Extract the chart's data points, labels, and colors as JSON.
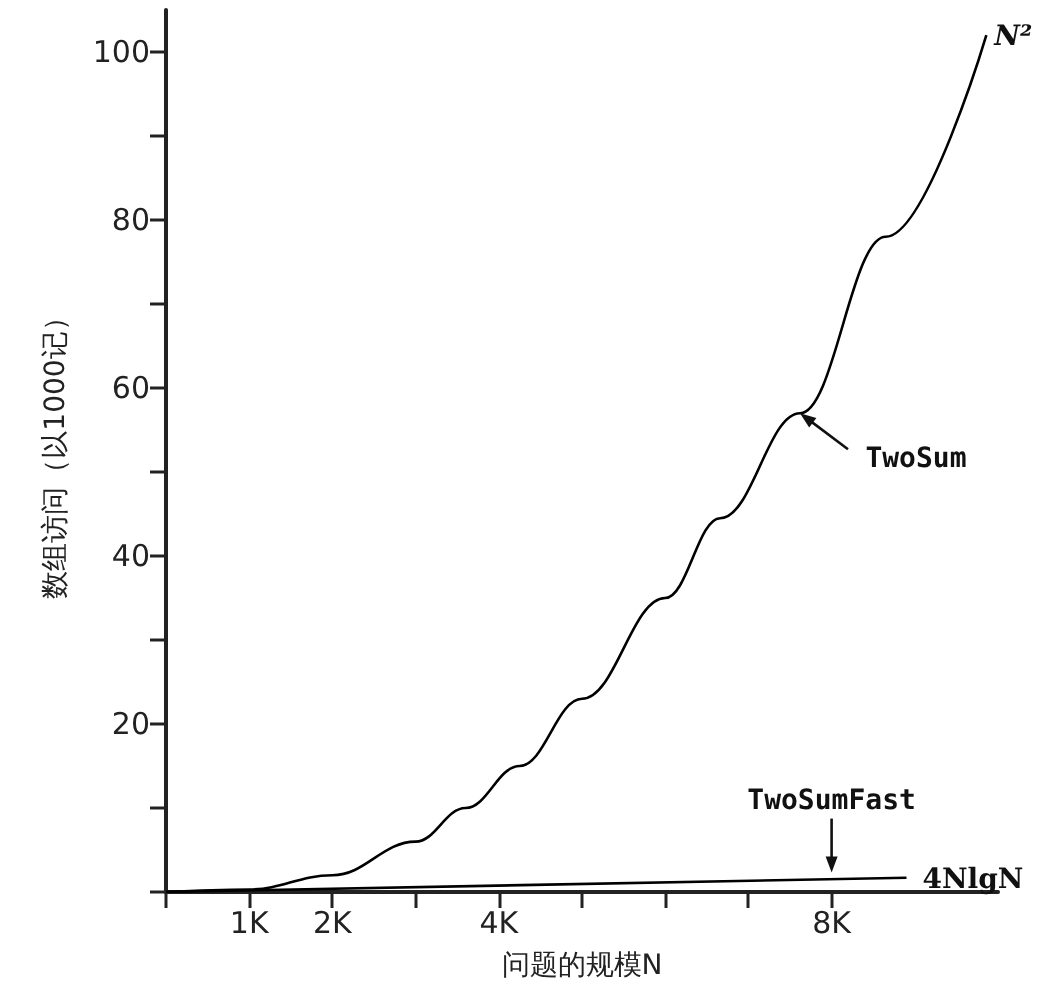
{
  "chart_data": {
    "type": "line",
    "xlabel": "问题的规模N",
    "ylabel": "数组访问（以1000记）",
    "series": [
      {
        "color": "#000000",
        "x": [
          0,
          1,
          2,
          3,
          3.6,
          4.25,
          5,
          6,
          6.66,
          7.62,
          8.65,
          9.86
        ],
        "values": [
          0,
          0.3,
          2,
          6,
          10,
          15,
          23,
          35,
          44.5,
          57,
          78,
          102
        ]
      },
      {
        "color": "#000000",
        "x": [
          0,
          8.9
        ],
        "values": [
          0,
          1.7
        ]
      }
    ],
    "xlim": [
      0,
      10
    ],
    "ylim": [
      0,
      105
    ],
    "xticks": [
      {
        "value": 0,
        "label": null
      },
      {
        "value": 1,
        "label": "1K"
      },
      {
        "value": 2,
        "label": "2K"
      },
      {
        "value": 3,
        "label": null
      },
      {
        "value": 4,
        "label": "4K"
      },
      {
        "value": 5,
        "label": null
      },
      {
        "value": 6,
        "label": null
      },
      {
        "value": 7,
        "label": null
      },
      {
        "value": 8,
        "label": "8K"
      }
    ],
    "yticks": [
      {
        "value": 0,
        "label": null
      },
      {
        "value": 10,
        "label": null
      },
      20,
      {
        "value": 30,
        "label": null
      },
      40,
      {
        "value": 50,
        "label": null
      },
      60,
      {
        "value": 70,
        "label": null
      },
      80,
      {
        "value": 90,
        "label": null
      },
      100
    ],
    "annotations": [
      {
        "text": "N²",
        "x": 9.86,
        "y": 102
      },
      {
        "text": "TwoSum",
        "x": 7.62,
        "y": 57
      },
      {
        "text": "TwoSumFast",
        "x": 8,
        "y": 1.6
      },
      {
        "text": "4NlgN",
        "x": 8.9,
        "y": 1.7
      }
    ],
    "grid": false,
    "marker": "none",
    "line_style": "solid"
  }
}
